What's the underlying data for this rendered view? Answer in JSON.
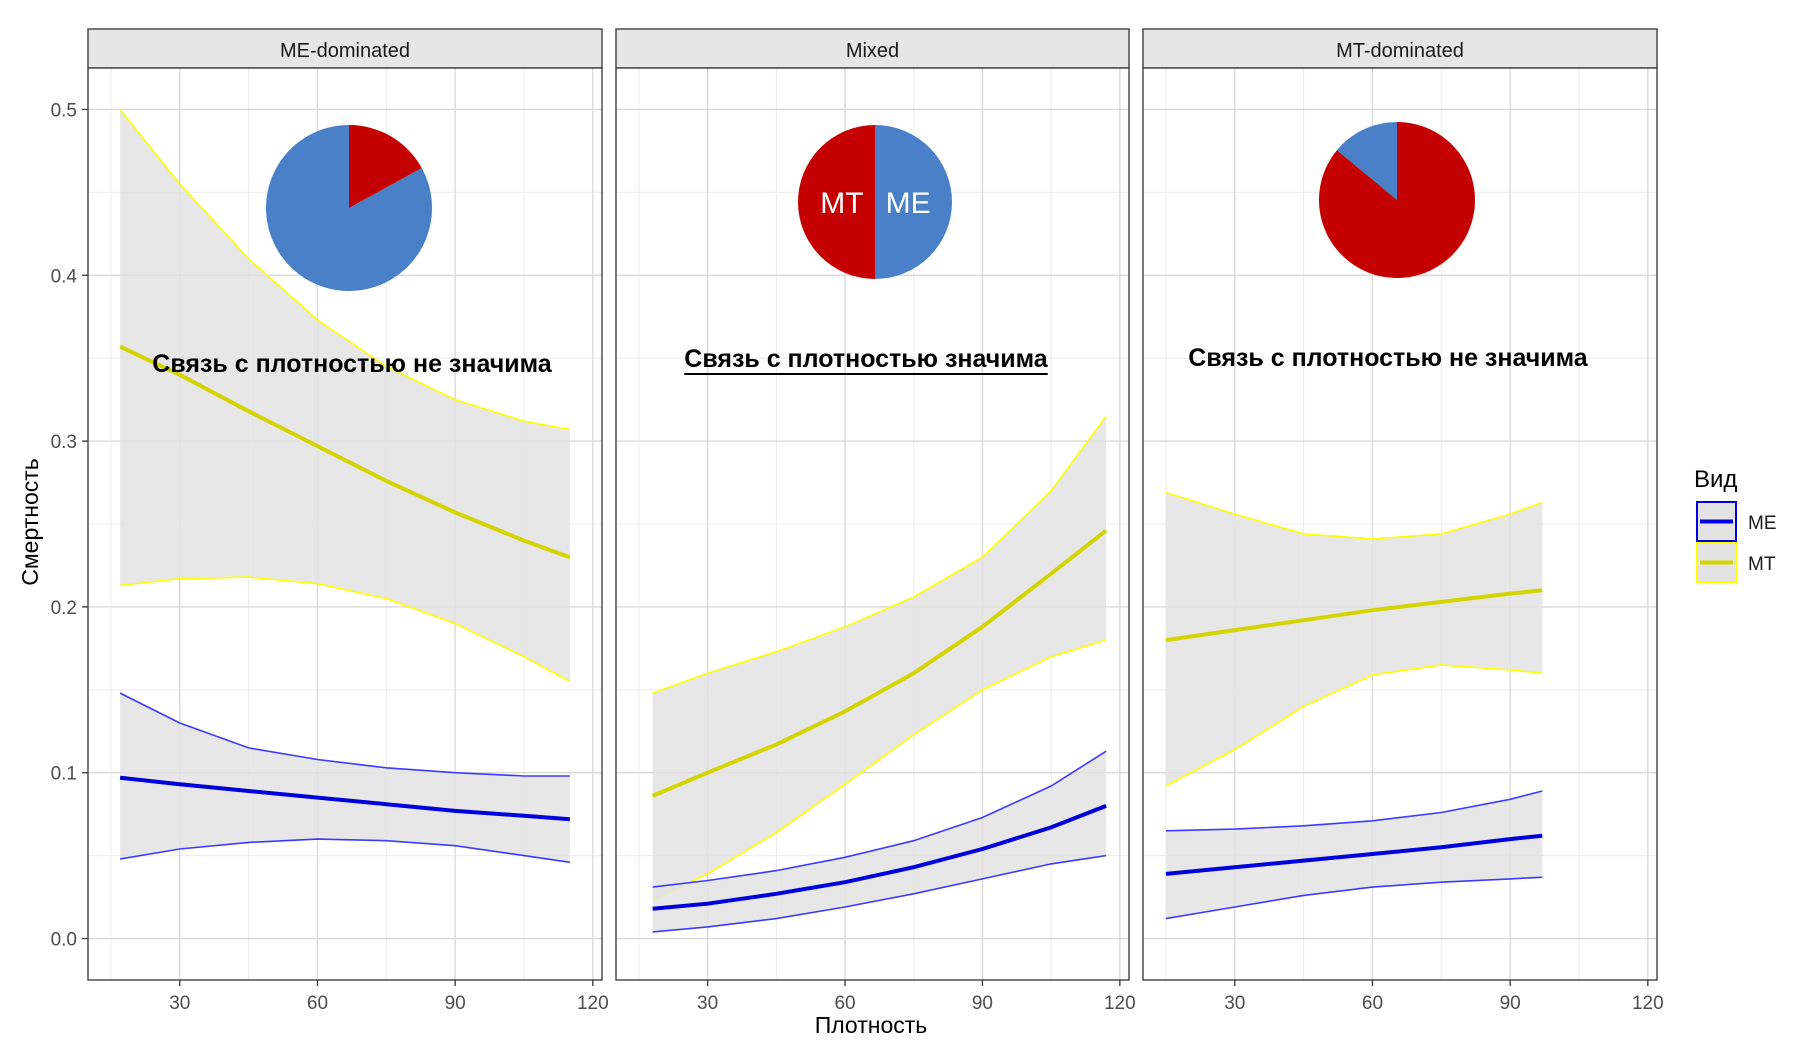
{
  "chart_data": {
    "type": "line",
    "xlabel": "Плотность",
    "ylabel": "Смертность",
    "xlim": [
      10,
      122
    ],
    "ylim": [
      -0.025,
      0.525
    ],
    "xticks": [
      30,
      60,
      90,
      120
    ],
    "yticks": [
      0.0,
      0.1,
      0.2,
      0.3,
      0.4,
      0.5
    ],
    "ytick_labels": [
      "0.0",
      "0.1",
      "0.2",
      "0.3",
      "0.4",
      "0.5"
    ],
    "grid": true,
    "legend": {
      "title": "Вид",
      "placement": "right",
      "entries": [
        {
          "label": "ME",
          "color": "#0000DD"
        },
        {
          "label": "MT",
          "color": "#D4D400"
        }
      ]
    },
    "colors": {
      "ME_line": "#0000DD",
      "ME_band_edge": "#3B3BFF",
      "MT_line": "#D4D400",
      "MT_band_edge": "#FFFF00",
      "band_fill": "#E3E3E3",
      "pie_ME": "#4A80C8",
      "pie_MT": "#C40000",
      "strip_fill": "#E6E6E6",
      "grid": "#D9D9D9"
    },
    "panels": [
      {
        "strip": "ME-dominated",
        "annotation": "Связь с плотностью не значима",
        "annotation_underline": false,
        "pie": {
          "ME_share": 0.83,
          "MT_share": 0.17,
          "labels": null
        },
        "series": [
          {
            "name": "MT",
            "x": [
              17,
              30,
              45,
              60,
              75,
              90,
              105,
              115
            ],
            "y": [
              0.357,
              0.34,
              0.318,
              0.297,
              0.276,
              0.257,
              0.24,
              0.23
            ],
            "lower": [
              0.213,
              0.217,
              0.218,
              0.214,
              0.205,
              0.19,
              0.17,
              0.155
            ],
            "upper": [
              0.5,
              0.455,
              0.41,
              0.373,
              0.345,
              0.325,
              0.312,
              0.307
            ]
          },
          {
            "name": "ME",
            "x": [
              17,
              30,
              45,
              60,
              75,
              90,
              105,
              115
            ],
            "y": [
              0.097,
              0.093,
              0.089,
              0.085,
              0.081,
              0.077,
              0.074,
              0.072
            ],
            "lower": [
              0.048,
              0.054,
              0.058,
              0.06,
              0.059,
              0.056,
              0.05,
              0.046
            ],
            "upper": [
              0.148,
              0.13,
              0.115,
              0.108,
              0.103,
              0.1,
              0.098,
              0.098
            ]
          }
        ]
      },
      {
        "strip": "Mixed",
        "annotation": "Связь с плотностью значима",
        "annotation_underline": true,
        "pie": {
          "ME_share": 0.5,
          "MT_share": 0.5,
          "labels": {
            "MT": "MT",
            "ME": "ME"
          }
        },
        "series": [
          {
            "name": "MT",
            "x": [
              18,
              30,
              45,
              60,
              75,
              90,
              105,
              117
            ],
            "y": [
              0.086,
              0.1,
              0.117,
              0.137,
              0.16,
              0.188,
              0.22,
              0.246
            ],
            "lower": [
              0.023,
              0.039,
              0.064,
              0.093,
              0.123,
              0.15,
              0.17,
              0.18
            ],
            "upper": [
              0.148,
              0.16,
              0.173,
              0.188,
              0.206,
              0.23,
              0.27,
              0.315
            ]
          },
          {
            "name": "ME",
            "x": [
              18,
              30,
              45,
              60,
              75,
              90,
              105,
              117
            ],
            "y": [
              0.018,
              0.021,
              0.027,
              0.034,
              0.043,
              0.054,
              0.067,
              0.08
            ],
            "lower": [
              0.004,
              0.007,
              0.012,
              0.019,
              0.027,
              0.036,
              0.045,
              0.05
            ],
            "upper": [
              0.031,
              0.035,
              0.041,
              0.049,
              0.059,
              0.073,
              0.092,
              0.113
            ]
          }
        ]
      },
      {
        "strip": "MT-dominated",
        "annotation": "Связь с плотностью не значима",
        "annotation_underline": false,
        "pie": {
          "ME_share": 0.14,
          "MT_share": 0.86,
          "labels": null
        },
        "series": [
          {
            "name": "MT",
            "x": [
              15,
              30,
              45,
              60,
              75,
              90,
              97
            ],
            "y": [
              0.18,
              0.186,
              0.192,
              0.198,
              0.203,
              0.208,
              0.21
            ],
            "lower": [
              0.092,
              0.114,
              0.14,
              0.159,
              0.165,
              0.162,
              0.16
            ],
            "upper": [
              0.269,
              0.256,
              0.244,
              0.241,
              0.244,
              0.256,
              0.263
            ]
          },
          {
            "name": "ME",
            "x": [
              15,
              30,
              45,
              60,
              75,
              90,
              97
            ],
            "y": [
              0.039,
              0.043,
              0.047,
              0.051,
              0.055,
              0.06,
              0.062
            ],
            "lower": [
              0.012,
              0.019,
              0.026,
              0.031,
              0.034,
              0.036,
              0.037
            ],
            "upper": [
              0.065,
              0.066,
              0.068,
              0.071,
              0.076,
              0.084,
              0.089
            ]
          }
        ]
      }
    ]
  }
}
